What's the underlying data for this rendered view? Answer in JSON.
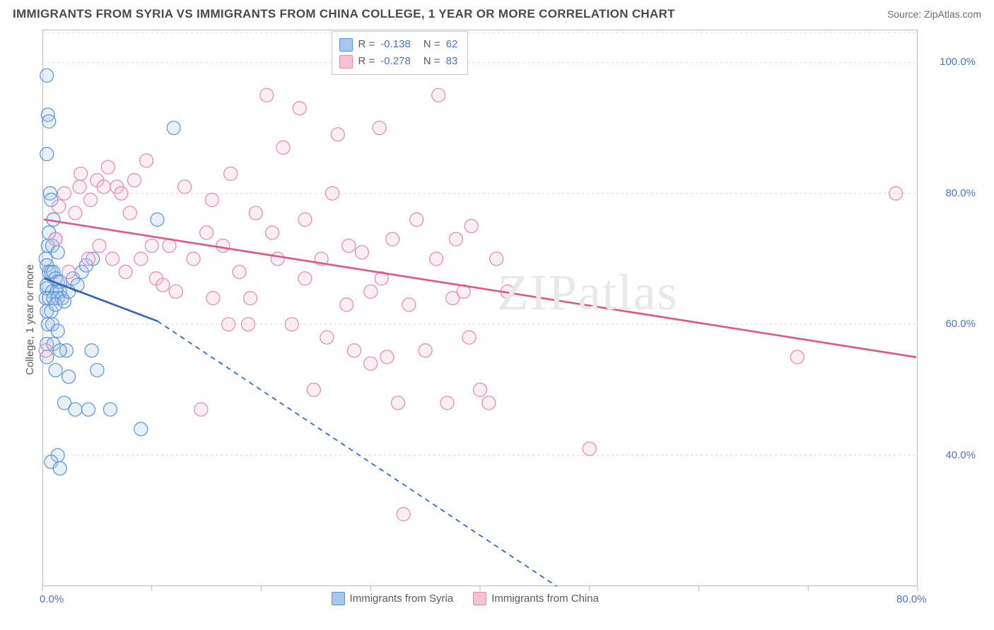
{
  "header": {
    "title": "IMMIGRANTS FROM SYRIA VS IMMIGRANTS FROM CHINA COLLEGE, 1 YEAR OR MORE CORRELATION CHART",
    "source_prefix": "Source: ",
    "source_name": "ZipAtlas.com"
  },
  "chart": {
    "type": "scatter",
    "watermark": "ZIPatlas",
    "background_color": "#ffffff",
    "border_color": "#b9b9b9",
    "grid_color": "#d8d8d8",
    "grid_dash": "3,4",
    "xlim": [
      0,
      80
    ],
    "ylim": [
      20,
      105
    ],
    "x_ticks": [
      0,
      10,
      20,
      30,
      40,
      50,
      60,
      70,
      80
    ],
    "x_tick_labels": {
      "0": "0.0%",
      "80": "80.0%"
    },
    "y_ticks": [
      40,
      60,
      80,
      100
    ],
    "y_tick_labels": {
      "40": "40.0%",
      "60": "60.0%",
      "80": "80.0%",
      "100": "100.0%"
    },
    "y_axis_title": "College, 1 year or more",
    "marker_radius": 9.5,
    "marker_stroke_width": 1.2,
    "marker_fill_opacity": 0.28,
    "series": [
      {
        "id": "syria",
        "label": "Immigrants from Syria",
        "color_stroke": "#5d94d6",
        "color_fill": "#a9c7ea",
        "R": "-0.138",
        "N": "62",
        "trend": {
          "solid": {
            "x1": 0.2,
            "y1": 67,
            "x2": 10.5,
            "y2": 60.5
          },
          "dashed": {
            "x1": 10.5,
            "y1": 60.5,
            "x2": 47,
            "y2": 20
          },
          "color": "#2f63c0",
          "width": 2.6,
          "dash": "7,6"
        },
        "points": [
          [
            0.4,
            98
          ],
          [
            0.5,
            92
          ],
          [
            0.6,
            91
          ],
          [
            0.4,
            86
          ],
          [
            0.7,
            80
          ],
          [
            0.8,
            79
          ],
          [
            1.0,
            76
          ],
          [
            0.6,
            74
          ],
          [
            1.2,
            73
          ],
          [
            0.5,
            72
          ],
          [
            0.9,
            72
          ],
          [
            1.4,
            71
          ],
          [
            0.3,
            70
          ],
          [
            0.4,
            69
          ],
          [
            0.6,
            68
          ],
          [
            0.8,
            68
          ],
          [
            1.0,
            68
          ],
          [
            1.2,
            67
          ],
          [
            1.4,
            66.5
          ],
          [
            1.6,
            66.5
          ],
          [
            0.4,
            66
          ],
          [
            0.4,
            65.5
          ],
          [
            0.9,
            65
          ],
          [
            1.3,
            65
          ],
          [
            1.6,
            65
          ],
          [
            0.3,
            64
          ],
          [
            0.6,
            64
          ],
          [
            1.0,
            64
          ],
          [
            1.4,
            64
          ],
          [
            1.8,
            64
          ],
          [
            0.4,
            62
          ],
          [
            0.8,
            62
          ],
          [
            1.2,
            63
          ],
          [
            2.0,
            63.5
          ],
          [
            2.4,
            65
          ],
          [
            2.8,
            67
          ],
          [
            3.2,
            66
          ],
          [
            3.6,
            68
          ],
          [
            4.0,
            69
          ],
          [
            4.6,
            70
          ],
          [
            0.5,
            60
          ],
          [
            0.9,
            60
          ],
          [
            1.4,
            59
          ],
          [
            0.4,
            57
          ],
          [
            1.0,
            57
          ],
          [
            2.2,
            56
          ],
          [
            1.6,
            56
          ],
          [
            4.5,
            56
          ],
          [
            0.4,
            55
          ],
          [
            1.2,
            53
          ],
          [
            2.4,
            52
          ],
          [
            5.0,
            53
          ],
          [
            2.0,
            48
          ],
          [
            3.0,
            47
          ],
          [
            4.2,
            47
          ],
          [
            6.2,
            47
          ],
          [
            9.0,
            44
          ],
          [
            1.4,
            40
          ],
          [
            0.8,
            39
          ],
          [
            1.6,
            38
          ],
          [
            12.0,
            90
          ],
          [
            10.5,
            76
          ]
        ]
      },
      {
        "id": "china",
        "label": "Immigrants from China",
        "color_stroke": "#e68aa8",
        "color_fill": "#f4c3d3",
        "R": "-0.278",
        "N": "83",
        "trend": {
          "solid": {
            "x1": 0.2,
            "y1": 76,
            "x2": 79.8,
            "y2": 55
          },
          "color": "#e15585",
          "width": 2.6
        },
        "points": [
          [
            0.3,
            56
          ],
          [
            1.2,
            73
          ],
          [
            1.5,
            78
          ],
          [
            2.0,
            80
          ],
          [
            2.4,
            68
          ],
          [
            3.0,
            77
          ],
          [
            3.4,
            81
          ],
          [
            3.5,
            83
          ],
          [
            4.2,
            70
          ],
          [
            4.4,
            79
          ],
          [
            5.0,
            82
          ],
          [
            5.2,
            72
          ],
          [
            5.6,
            81
          ],
          [
            6.0,
            84
          ],
          [
            6.4,
            70
          ],
          [
            6.8,
            81
          ],
          [
            7.2,
            80
          ],
          [
            7.6,
            68
          ],
          [
            8.0,
            77
          ],
          [
            8.4,
            82
          ],
          [
            9.0,
            70
          ],
          [
            9.5,
            85
          ],
          [
            10.0,
            72
          ],
          [
            10.4,
            67
          ],
          [
            11.0,
            66
          ],
          [
            11.6,
            72
          ],
          [
            12.2,
            65
          ],
          [
            13.0,
            81
          ],
          [
            13.8,
            70
          ],
          [
            14.5,
            47
          ],
          [
            15.0,
            74
          ],
          [
            15.6,
            64
          ],
          [
            16.5,
            72
          ],
          [
            17.2,
            83
          ],
          [
            18.0,
            68
          ],
          [
            18.8,
            60
          ],
          [
            19.5,
            77
          ],
          [
            20.5,
            95
          ],
          [
            21.5,
            70
          ],
          [
            22.0,
            87
          ],
          [
            22.8,
            60
          ],
          [
            23.5,
            93
          ],
          [
            24.0,
            76
          ],
          [
            24.8,
            50
          ],
          [
            25.5,
            70
          ],
          [
            26.5,
            80
          ],
          [
            27.0,
            89
          ],
          [
            27.8,
            63
          ],
          [
            28.5,
            56
          ],
          [
            29.2,
            71
          ],
          [
            30.0,
            65
          ],
          [
            30.8,
            90
          ],
          [
            31.5,
            55
          ],
          [
            32.0,
            73
          ],
          [
            33.0,
            31
          ],
          [
            32.5,
            48
          ],
          [
            33.5,
            63
          ],
          [
            34.2,
            76
          ],
          [
            35.0,
            56
          ],
          [
            36.2,
            95
          ],
          [
            37.0,
            48
          ],
          [
            37.8,
            73
          ],
          [
            38.5,
            65
          ],
          [
            39.2,
            75
          ],
          [
            40.0,
            50
          ],
          [
            40.8,
            48
          ],
          [
            41.5,
            70
          ],
          [
            42.5,
            65
          ],
          [
            36.0,
            70
          ],
          [
            37.5,
            64
          ],
          [
            39.0,
            58
          ],
          [
            50.0,
            41
          ],
          [
            24.0,
            67
          ],
          [
            26.0,
            58
          ],
          [
            28.0,
            72
          ],
          [
            30.0,
            54
          ],
          [
            19.0,
            64
          ],
          [
            21.0,
            74
          ],
          [
            69.0,
            55
          ],
          [
            78.0,
            80
          ],
          [
            15.5,
            79
          ],
          [
            17.0,
            60
          ],
          [
            31.0,
            67
          ]
        ]
      }
    ],
    "legend": {
      "swatch_border": "#8fa9d1"
    }
  }
}
